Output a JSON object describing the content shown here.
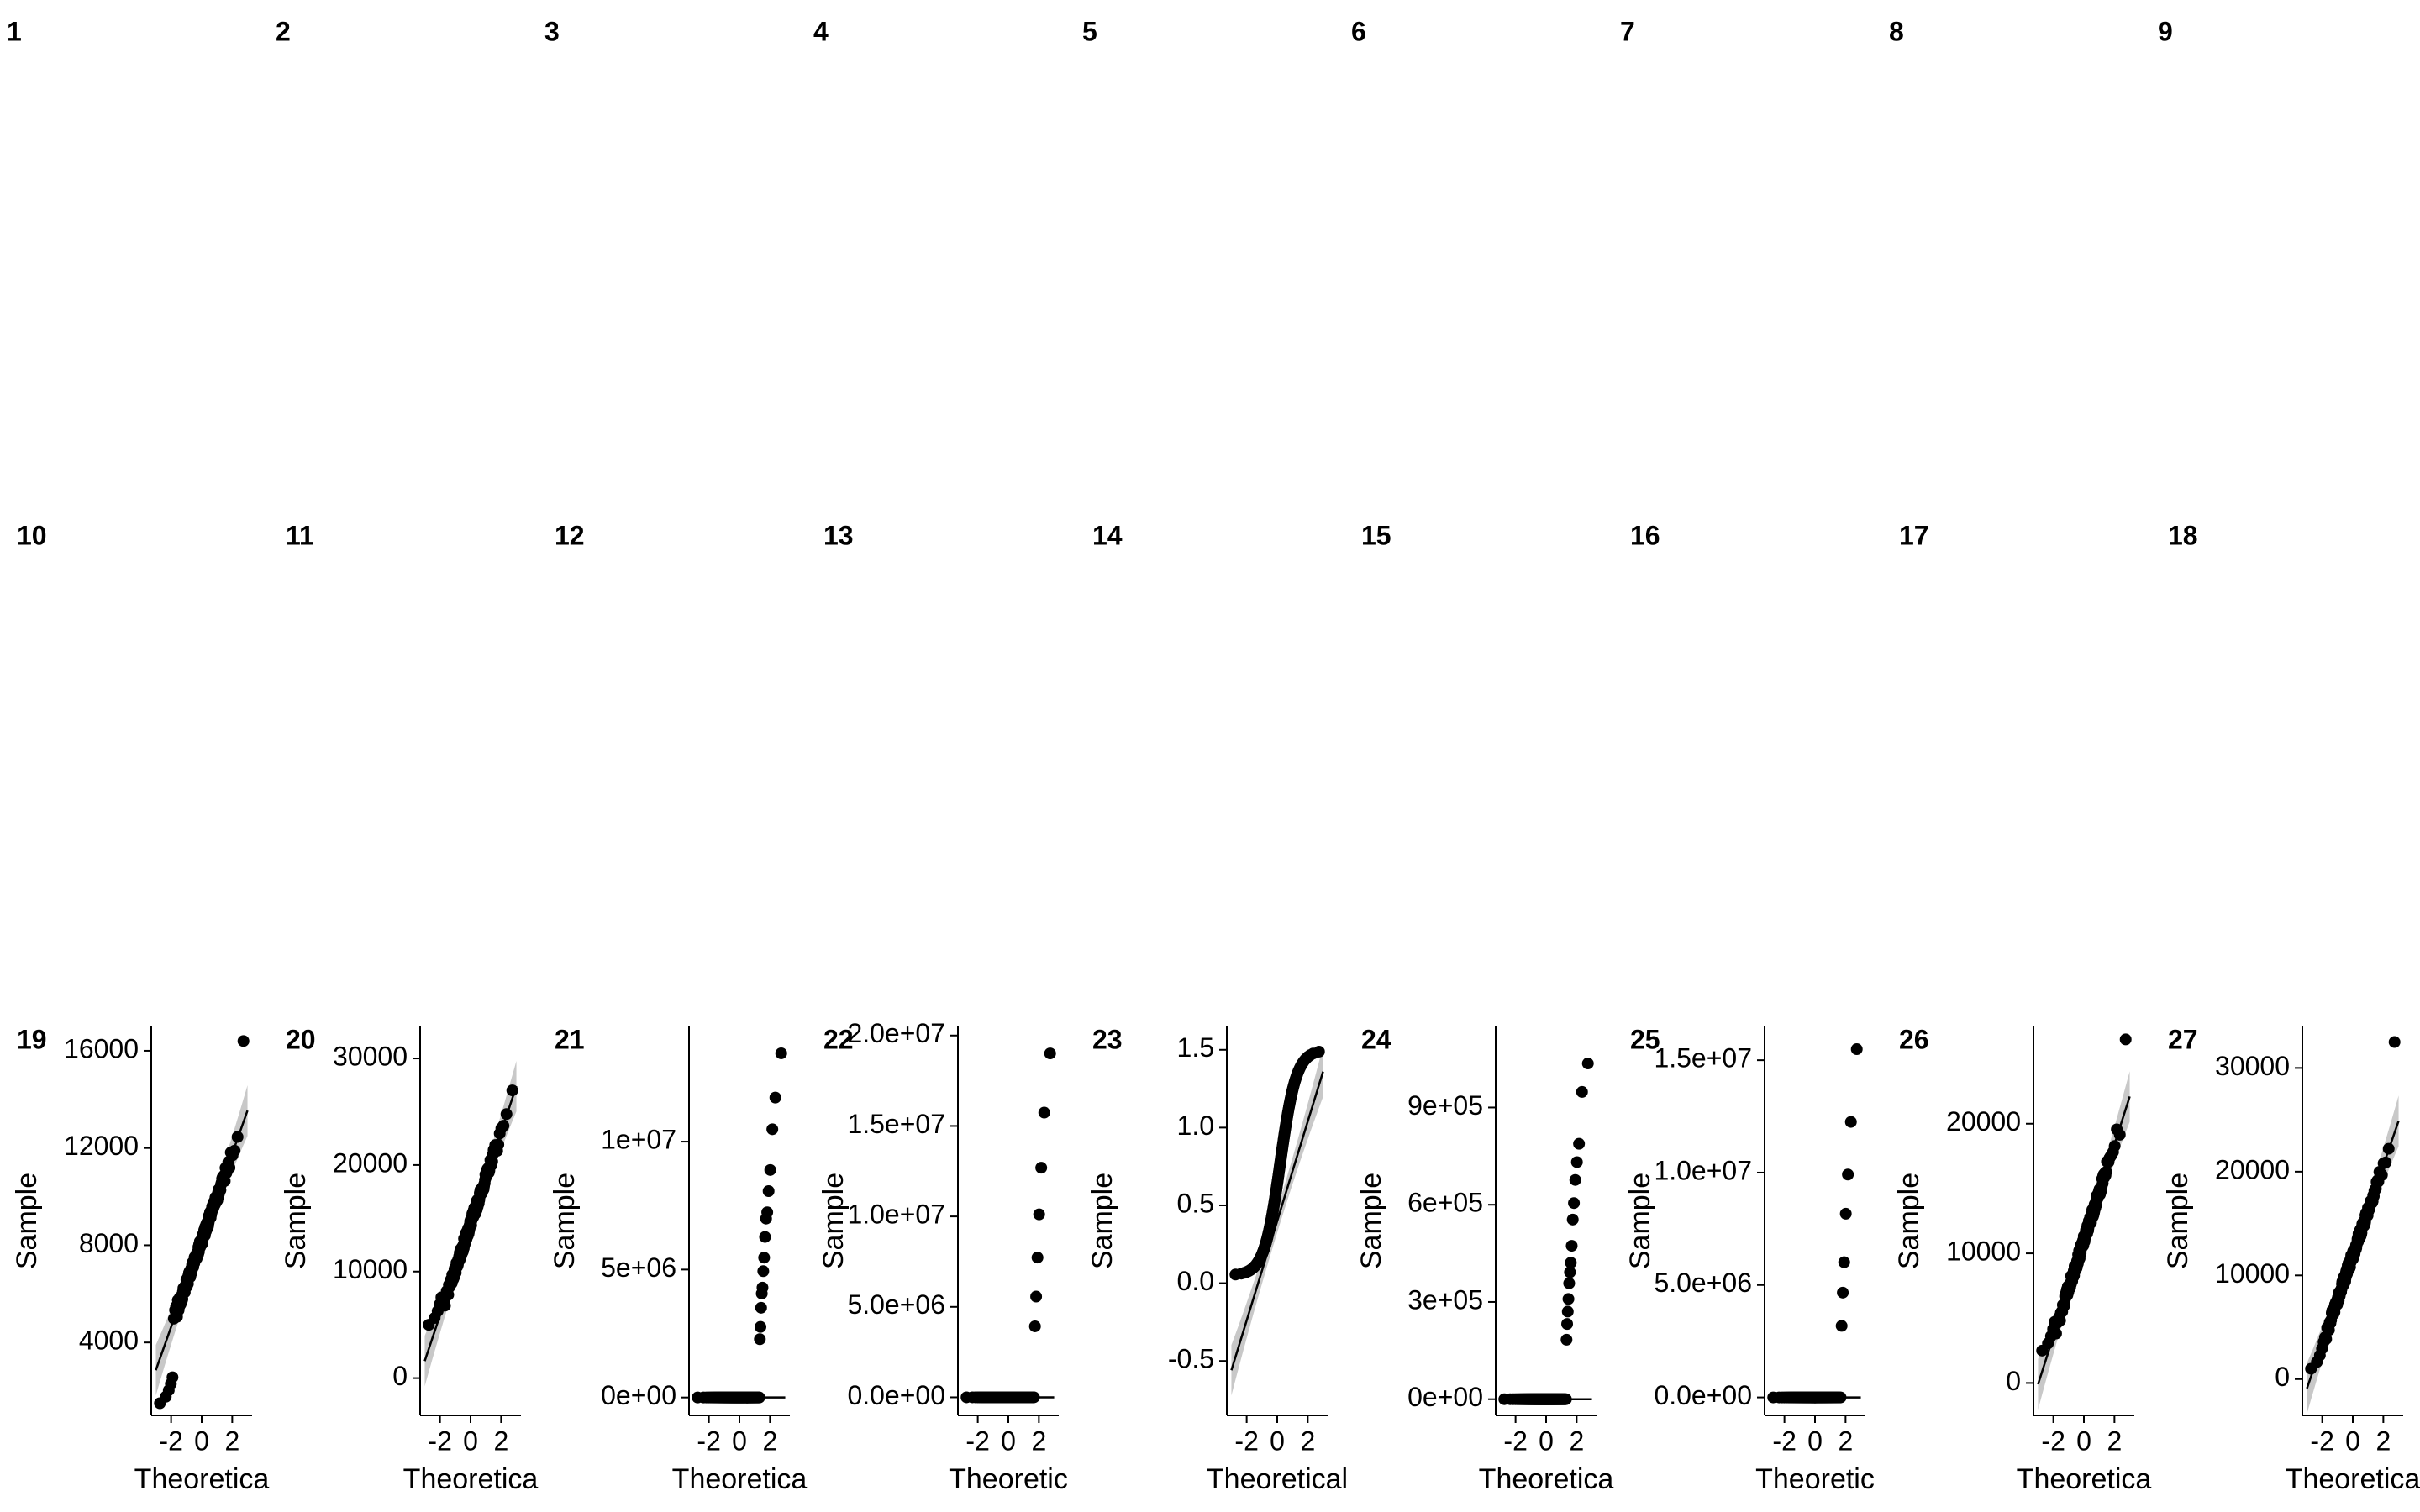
{
  "chart_data": {
    "type": "scatter",
    "layout": "facet-grid",
    "panels": [
      {
        "id": "1",
        "empty": true
      },
      {
        "id": "2",
        "empty": true
      },
      {
        "id": "3",
        "empty": true
      },
      {
        "id": "4",
        "empty": true
      },
      {
        "id": "5",
        "empty": true
      },
      {
        "id": "6",
        "empty": true
      },
      {
        "id": "7",
        "empty": true
      },
      {
        "id": "8",
        "empty": true
      },
      {
        "id": "9",
        "empty": true
      },
      {
        "id": "10",
        "empty": true
      },
      {
        "id": "11",
        "empty": true
      },
      {
        "id": "12",
        "empty": true
      },
      {
        "id": "13",
        "empty": true
      },
      {
        "id": "14",
        "empty": true
      },
      {
        "id": "15",
        "empty": true
      },
      {
        "id": "16",
        "empty": true
      },
      {
        "id": "17",
        "empty": true
      },
      {
        "id": "18",
        "empty": true
      },
      {
        "id": "19",
        "empty": false,
        "shape": "linear",
        "xlabel": "Theoretica",
        "ylabel": "Sample",
        "xlim": [
          -3.3,
          3.3
        ],
        "ylim": [
          1000,
          17000
        ],
        "xticks": [
          {
            "v": -2,
            "t": "-2"
          },
          {
            "v": 0,
            "t": "0"
          },
          {
            "v": 2,
            "t": "2"
          }
        ],
        "yticks": [
          {
            "v": 4000,
            "t": "4000"
          },
          {
            "v": 8000,
            "t": "8000"
          },
          {
            "v": 12000,
            "t": "12000"
          },
          {
            "v": 16000,
            "t": "16000"
          }
        ],
        "qq_line": {
          "intercept": 8200,
          "slope": 1780
        },
        "sample_range": [
          1500,
          16400
        ]
      },
      {
        "id": "20",
        "empty": false,
        "shape": "linear",
        "xlabel": "Theoretica",
        "ylabel": "Sample",
        "xlim": [
          -3.3,
          3.3
        ],
        "ylim": [
          -3500,
          33000
        ],
        "xticks": [
          {
            "v": -2,
            "t": "-2"
          },
          {
            "v": 0,
            "t": "0"
          },
          {
            "v": 2,
            "t": "2"
          }
        ],
        "yticks": [
          {
            "v": 0,
            "t": "0"
          },
          {
            "v": 10000,
            "t": "10000"
          },
          {
            "v": 20000,
            "t": "20000"
          },
          {
            "v": 30000,
            "t": "30000"
          }
        ],
        "qq_line": {
          "intercept": 14500,
          "slope": 4300
        },
        "sample_range": [
          5000,
          27000
        ]
      },
      {
        "id": "21",
        "empty": false,
        "shape": "zero-inflated",
        "xlabel": "Theoretica",
        "ylabel": "Sample",
        "xlim": [
          -3.3,
          3.3
        ],
        "ylim": [
          -700000,
          14500000
        ],
        "xticks": [
          {
            "v": -2,
            "t": "-2"
          },
          {
            "v": 0,
            "t": "0"
          },
          {
            "v": 2,
            "t": "2"
          }
        ],
        "yticks": [
          {
            "v": 0,
            "t": "0e+00"
          },
          {
            "v": 5000000,
            "t": "5e+06"
          },
          {
            "v": 10000000,
            "t": "1e+07"
          }
        ],
        "qq_line": {
          "intercept": 0,
          "slope": 0
        },
        "jump_x": 1.3,
        "sample_max": 14000000
      },
      {
        "id": "22",
        "empty": false,
        "shape": "zero-inflated",
        "xlabel": "Theoretic",
        "ylabel": "Sample",
        "xlim": [
          -3.3,
          3.3
        ],
        "ylim": [
          -1000000,
          20500000
        ],
        "xticks": [
          {
            "v": -2,
            "t": "-2"
          },
          {
            "v": 0,
            "t": "0"
          },
          {
            "v": 2,
            "t": "2"
          }
        ],
        "yticks": [
          {
            "v": 0,
            "t": "0.0e+00"
          },
          {
            "v": 5000000,
            "t": "5.0e+06"
          },
          {
            "v": 10000000,
            "t": "1.0e+07"
          },
          {
            "v": 15000000,
            "t": "1.5e+07"
          },
          {
            "v": 20000000,
            "t": "2.0e+07"
          }
        ],
        "qq_line": {
          "intercept": 0,
          "slope": 0
        },
        "jump_x": 1.7,
        "sample_max": 19500000
      },
      {
        "id": "23",
        "empty": false,
        "shape": "s-curve",
        "xlabel": "Theoretical",
        "ylabel": "Sample",
        "xlim": [
          -3.3,
          3.3
        ],
        "ylim": [
          -0.85,
          1.65
        ],
        "xticks": [
          {
            "v": -2,
            "t": "-2"
          },
          {
            "v": 0,
            "t": "0"
          },
          {
            "v": 2,
            "t": "2"
          }
        ],
        "yticks": [
          {
            "v": -0.5,
            "t": "-0.5"
          },
          {
            "v": 0,
            "t": "0.0"
          },
          {
            "v": 0.5,
            "t": "0.5"
          },
          {
            "v": 1,
            "t": "1.0"
          },
          {
            "v": 1.5,
            "t": "1.5"
          }
        ],
        "qq_line": {
          "intercept": 0.4,
          "slope": 0.32
        },
        "sample_range": [
          0.05,
          1.5
        ]
      },
      {
        "id": "24",
        "empty": false,
        "shape": "zero-inflated",
        "xlabel": "Theoretica",
        "ylabel": "Sample",
        "xlim": [
          -3.3,
          3.3
        ],
        "ylim": [
          -50000,
          1150000
        ],
        "xticks": [
          {
            "v": -2,
            "t": "-2"
          },
          {
            "v": 0,
            "t": "0"
          },
          {
            "v": 2,
            "t": "2"
          }
        ],
        "yticks": [
          {
            "v": 0,
            "t": "0e+00"
          },
          {
            "v": 300000,
            "t": "3e+05"
          },
          {
            "v": 600000,
            "t": "6e+05"
          },
          {
            "v": 900000,
            "t": "9e+05"
          }
        ],
        "qq_line": {
          "intercept": 0,
          "slope": 0
        },
        "jump_x": 1.3,
        "sample_max": 1100000
      },
      {
        "id": "25",
        "empty": false,
        "shape": "zero-inflated",
        "xlabel": "Theoretic",
        "ylabel": "Sample",
        "xlim": [
          -3.3,
          3.3
        ],
        "ylim": [
          -800000,
          16500000
        ],
        "xticks": [
          {
            "v": -2,
            "t": "-2"
          },
          {
            "v": 0,
            "t": "0"
          },
          {
            "v": 2,
            "t": "2"
          }
        ],
        "yticks": [
          {
            "v": 0,
            "t": "0.0e+00"
          },
          {
            "v": 5000000,
            "t": "5.0e+06"
          },
          {
            "v": 10000000,
            "t": "1.0e+07"
          },
          {
            "v": 15000000,
            "t": "1.5e+07"
          }
        ],
        "qq_line": {
          "intercept": 0,
          "slope": 0
        },
        "jump_x": 1.7,
        "sample_max": 15800000
      },
      {
        "id": "26",
        "empty": false,
        "shape": "linear",
        "xlabel": "Theoretica",
        "ylabel": "Sample",
        "xlim": [
          -3.3,
          3.3
        ],
        "ylim": [
          -2500,
          27500
        ],
        "xticks": [
          {
            "v": -2,
            "t": "-2"
          },
          {
            "v": 0,
            "t": "0"
          },
          {
            "v": 2,
            "t": "2"
          }
        ],
        "yticks": [
          {
            "v": 0,
            "t": "0"
          },
          {
            "v": 10000,
            "t": "10000"
          },
          {
            "v": 20000,
            "t": "20000"
          }
        ],
        "qq_line": {
          "intercept": 11000,
          "slope": 3700
        },
        "sample_range": [
          2500,
          26500
        ]
      },
      {
        "id": "27",
        "empty": false,
        "shape": "linear",
        "xlabel": "Theoretica",
        "ylabel": "Sample",
        "xlim": [
          -3.3,
          3.3
        ],
        "ylim": [
          -3500,
          34000
        ],
        "xticks": [
          {
            "v": -2,
            "t": "-2"
          },
          {
            "v": 0,
            "t": "0"
          },
          {
            "v": 2,
            "t": "2"
          }
        ],
        "yticks": [
          {
            "v": 0,
            "t": "0"
          },
          {
            "v": 10000,
            "t": "10000"
          },
          {
            "v": 20000,
            "t": "20000"
          },
          {
            "v": 30000,
            "t": "30000"
          }
        ],
        "qq_line": {
          "intercept": 12000,
          "slope": 4300
        },
        "sample_range": [
          1000,
          32500
        ]
      }
    ],
    "colors": {
      "points": "#000000",
      "line": "#000000",
      "band": "#c8c8c8"
    },
    "grid": false,
    "confidence_band": true
  }
}
